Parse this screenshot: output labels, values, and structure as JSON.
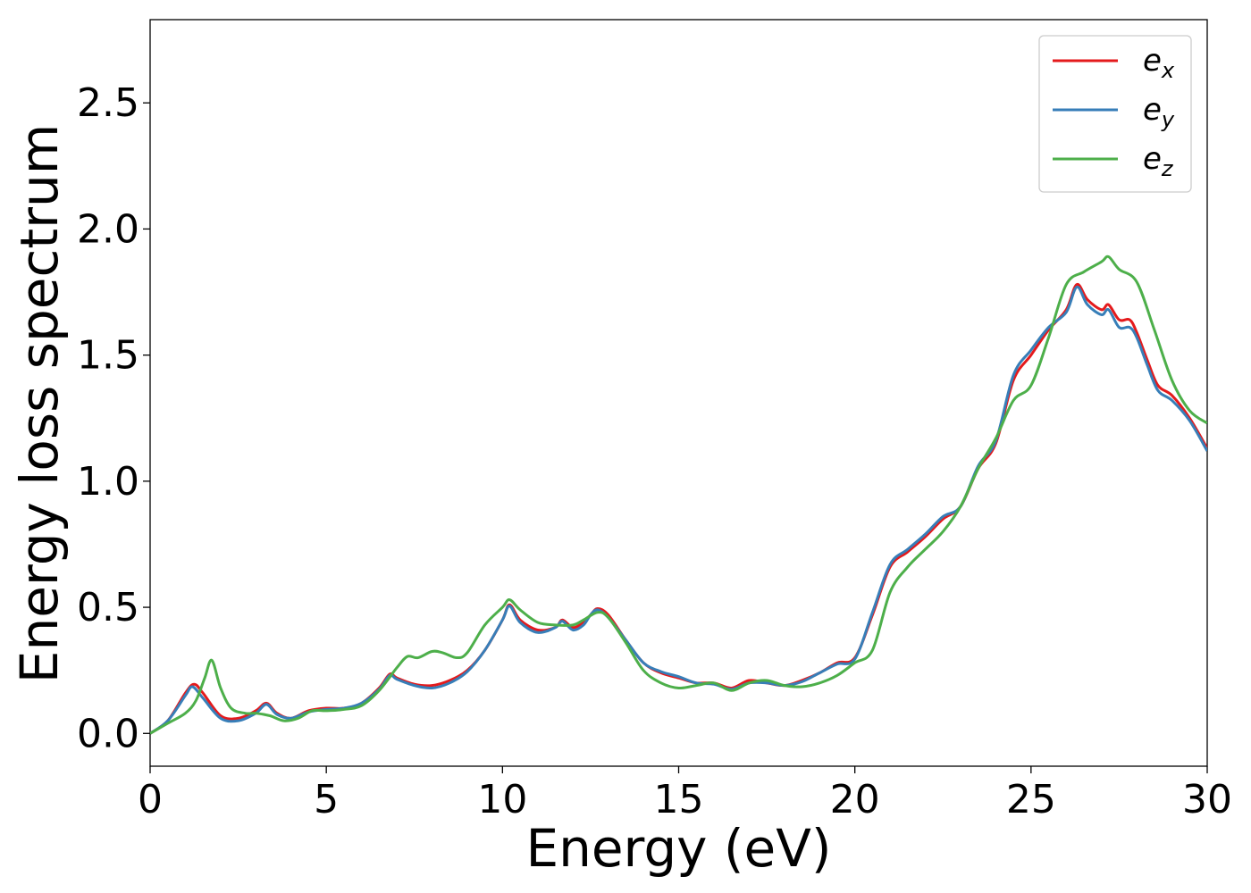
{
  "chart_data": {
    "type": "line",
    "xlabel": "Energy (eV)",
    "ylabel": "Energy loss spectrum",
    "xlim": [
      0,
      30
    ],
    "ylim": [
      -0.13,
      2.83
    ],
    "xticks": [
      0,
      5,
      10,
      15,
      20,
      25,
      30
    ],
    "xtick_labels": [
      "0",
      "5",
      "10",
      "15",
      "20",
      "25",
      "30"
    ],
    "yticks": [
      0.0,
      0.5,
      1.0,
      1.5,
      2.0,
      2.5
    ],
    "ytick_labels": [
      "0.0",
      "0.5",
      "1.0",
      "1.5",
      "2.0",
      "2.5"
    ],
    "grid": false,
    "legend_position": "top-right",
    "series": [
      {
        "name": "e_x",
        "legend_base": "e",
        "legend_sub": "x",
        "color": "#e41a1c",
        "x": [
          0,
          0.5,
          1.0,
          1.25,
          1.5,
          2.0,
          2.5,
          3.0,
          3.3,
          3.6,
          4.0,
          4.5,
          5.0,
          5.5,
          6.0,
          6.5,
          6.8,
          7.0,
          7.5,
          8.0,
          8.5,
          9.0,
          9.5,
          10.0,
          10.2,
          10.5,
          11.0,
          11.5,
          11.7,
          12.0,
          12.3,
          12.5,
          12.7,
          13.0,
          13.5,
          14.0,
          14.5,
          15.0,
          15.5,
          16.0,
          16.5,
          17.0,
          17.5,
          18.0,
          18.5,
          19.0,
          19.5,
          20.0,
          20.5,
          21.0,
          21.5,
          22.0,
          22.5,
          23.0,
          23.5,
          24.0,
          24.5,
          25.0,
          25.5,
          26.0,
          26.3,
          26.6,
          27.0,
          27.2,
          27.5,
          27.8,
          28.0,
          28.3,
          28.6,
          29.0,
          29.5,
          30.0
        ],
        "y": [
          0.0,
          0.05,
          0.16,
          0.195,
          0.16,
          0.07,
          0.06,
          0.09,
          0.12,
          0.08,
          0.06,
          0.09,
          0.1,
          0.1,
          0.12,
          0.18,
          0.235,
          0.22,
          0.195,
          0.19,
          0.21,
          0.25,
          0.33,
          0.45,
          0.51,
          0.45,
          0.41,
          0.42,
          0.45,
          0.42,
          0.44,
          0.47,
          0.495,
          0.47,
          0.37,
          0.28,
          0.24,
          0.22,
          0.2,
          0.2,
          0.18,
          0.21,
          0.2,
          0.19,
          0.21,
          0.24,
          0.28,
          0.3,
          0.47,
          0.66,
          0.72,
          0.78,
          0.85,
          0.9,
          1.05,
          1.15,
          1.4,
          1.5,
          1.6,
          1.68,
          1.78,
          1.72,
          1.68,
          1.7,
          1.64,
          1.64,
          1.59,
          1.48,
          1.38,
          1.34,
          1.25,
          1.13
        ]
      },
      {
        "name": "e_y",
        "legend_base": "e",
        "legend_sub": "y",
        "color": "#377eb8",
        "x": [
          0,
          0.5,
          1.0,
          1.2,
          1.5,
          2.0,
          2.5,
          3.0,
          3.3,
          3.6,
          4.0,
          4.5,
          5.0,
          5.5,
          6.0,
          6.5,
          6.8,
          7.0,
          7.5,
          8.0,
          8.5,
          9.0,
          9.5,
          10.0,
          10.2,
          10.5,
          11.0,
          11.5,
          11.7,
          12.0,
          12.3,
          12.5,
          12.7,
          13.0,
          13.5,
          14.0,
          14.5,
          15.0,
          15.5,
          16.0,
          16.5,
          17.0,
          17.5,
          18.0,
          18.5,
          19.0,
          19.5,
          20.0,
          20.5,
          21.0,
          21.5,
          22.0,
          22.5,
          23.0,
          23.5,
          24.0,
          24.5,
          25.0,
          25.5,
          26.0,
          26.3,
          26.6,
          27.0,
          27.2,
          27.5,
          27.8,
          28.0,
          28.3,
          28.6,
          29.0,
          29.5,
          30.0
        ],
        "y": [
          0.0,
          0.05,
          0.15,
          0.185,
          0.14,
          0.06,
          0.05,
          0.08,
          0.115,
          0.075,
          0.06,
          0.085,
          0.095,
          0.1,
          0.12,
          0.175,
          0.23,
          0.215,
          0.19,
          0.18,
          0.2,
          0.245,
          0.33,
          0.45,
          0.505,
          0.44,
          0.4,
          0.42,
          0.445,
          0.41,
          0.43,
          0.47,
          0.49,
          0.46,
          0.37,
          0.28,
          0.245,
          0.225,
          0.2,
          0.195,
          0.175,
          0.2,
          0.2,
          0.19,
          0.205,
          0.24,
          0.275,
          0.295,
          0.48,
          0.67,
          0.73,
          0.79,
          0.86,
          0.9,
          1.06,
          1.16,
          1.42,
          1.52,
          1.61,
          1.67,
          1.77,
          1.7,
          1.66,
          1.68,
          1.61,
          1.61,
          1.57,
          1.46,
          1.36,
          1.32,
          1.24,
          1.12
        ]
      },
      {
        "name": "e_z",
        "legend_base": "e",
        "legend_sub": "z",
        "color": "#4daf4a",
        "x": [
          0,
          0.5,
          1.0,
          1.3,
          1.55,
          1.75,
          2.0,
          2.3,
          2.7,
          3.0,
          3.4,
          3.8,
          4.2,
          4.6,
          5.0,
          5.5,
          6.0,
          6.5,
          7.0,
          7.3,
          7.6,
          8.0,
          8.3,
          8.7,
          9.0,
          9.5,
          10.0,
          10.2,
          10.5,
          11.0,
          11.5,
          12.0,
          12.3,
          12.7,
          13.0,
          13.5,
          14.0,
          14.5,
          15.0,
          15.5,
          16.0,
          16.5,
          17.0,
          17.5,
          18.0,
          18.5,
          19.0,
          19.5,
          20.0,
          20.5,
          21.0,
          21.5,
          22.0,
          22.5,
          23.0,
          23.5,
          24.0,
          24.5,
          25.0,
          25.5,
          26.0,
          26.5,
          27.0,
          27.2,
          27.5,
          28.0,
          28.5,
          29.0,
          29.5,
          30.0
        ],
        "y": [
          0.0,
          0.04,
          0.08,
          0.13,
          0.22,
          0.29,
          0.18,
          0.1,
          0.08,
          0.08,
          0.07,
          0.05,
          0.06,
          0.09,
          0.09,
          0.095,
          0.11,
          0.17,
          0.26,
          0.305,
          0.3,
          0.325,
          0.32,
          0.3,
          0.32,
          0.43,
          0.5,
          0.53,
          0.49,
          0.44,
          0.43,
          0.43,
          0.45,
          0.48,
          0.46,
          0.36,
          0.25,
          0.2,
          0.18,
          0.19,
          0.2,
          0.17,
          0.2,
          0.21,
          0.19,
          0.185,
          0.2,
          0.23,
          0.28,
          0.33,
          0.56,
          0.66,
          0.73,
          0.8,
          0.9,
          1.05,
          1.17,
          1.32,
          1.38,
          1.57,
          1.78,
          1.83,
          1.87,
          1.89,
          1.84,
          1.79,
          1.6,
          1.4,
          1.28,
          1.23
        ]
      }
    ]
  }
}
